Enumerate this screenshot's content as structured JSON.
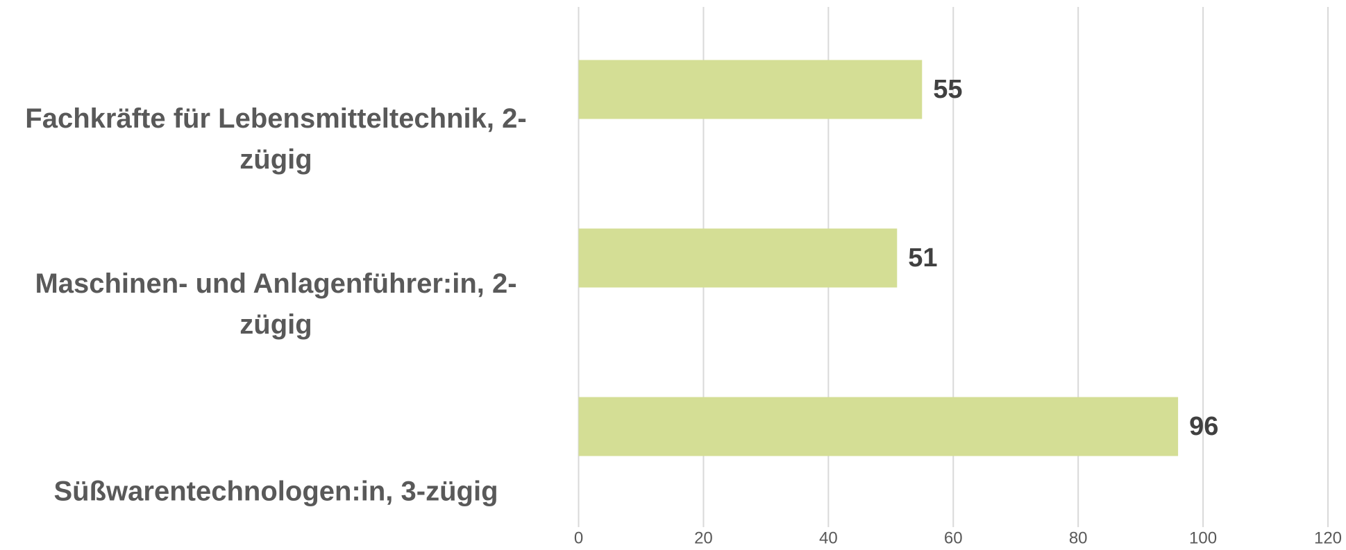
{
  "chart_data": {
    "type": "bar",
    "orientation": "horizontal",
    "categories": [
      "Fachkräfte für Lebensmitteltechnik, 2-zügig",
      "Maschinen- und Anlagenführer:in, 2-zügig",
      "Süßwarentechnologen:in, 3-zügig"
    ],
    "values": [
      55,
      51,
      96
    ],
    "color": "#d4de95",
    "xlim": [
      0,
      120
    ],
    "xticks": [
      0,
      20,
      40,
      60,
      80,
      100,
      120
    ],
    "grid": true
  }
}
